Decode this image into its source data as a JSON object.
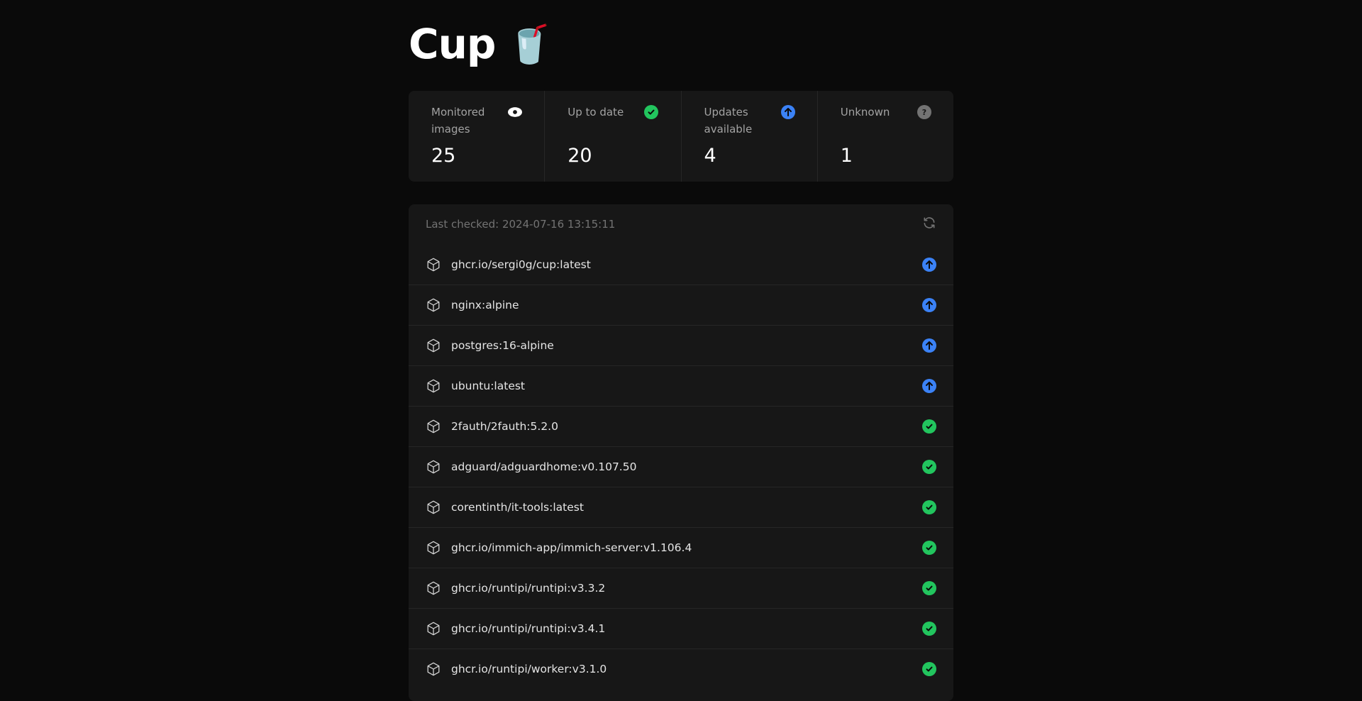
{
  "title": "Cup",
  "title_emoji": "🥤",
  "colors": {
    "up_to_date": "#22c55e",
    "update": "#3b82f6",
    "unknown": "#737373"
  },
  "stats": [
    {
      "label": "Monitored images",
      "value": "25",
      "icon": "eye-icon"
    },
    {
      "label": "Up to date",
      "value": "20",
      "icon": "check-circle-icon"
    },
    {
      "label": "Updates available",
      "value": "4",
      "icon": "arrow-up-circle-icon"
    },
    {
      "label": "Unknown",
      "value": "1",
      "icon": "question-circle-icon"
    }
  ],
  "list": {
    "last_checked": "Last checked: 2024-07-16 13:15:11",
    "images": [
      {
        "name": "ghcr.io/sergi0g/cup:latest",
        "status": "update"
      },
      {
        "name": "nginx:alpine",
        "status": "update"
      },
      {
        "name": "postgres:16-alpine",
        "status": "update"
      },
      {
        "name": "ubuntu:latest",
        "status": "update"
      },
      {
        "name": "2fauth/2fauth:5.2.0",
        "status": "up_to_date"
      },
      {
        "name": "adguard/adguardhome:v0.107.50",
        "status": "up_to_date"
      },
      {
        "name": "corentinth/it-tools:latest",
        "status": "up_to_date"
      },
      {
        "name": "ghcr.io/immich-app/immich-server:v1.106.4",
        "status": "up_to_date"
      },
      {
        "name": "ghcr.io/runtipi/runtipi:v3.3.2",
        "status": "up_to_date"
      },
      {
        "name": "ghcr.io/runtipi/runtipi:v3.4.1",
        "status": "up_to_date"
      },
      {
        "name": "ghcr.io/runtipi/worker:v3.1.0",
        "status": "up_to_date"
      }
    ]
  }
}
